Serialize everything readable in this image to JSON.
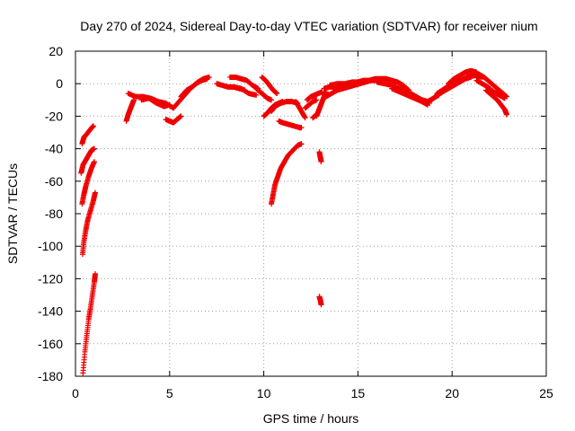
{
  "chart_data": {
    "type": "scatter",
    "title": "Day 270 of 2024, Sidereal Day-to-day VTEC variation (SDTVAR) for receiver nium",
    "xlabel": "GPS time / hours",
    "ylabel": "SDTVAR / TECUs",
    "xlim": [
      0,
      25
    ],
    "ylim": [
      -180,
      20
    ],
    "xticks": [
      0,
      5,
      10,
      15,
      20,
      25
    ],
    "yticks": [
      20,
      0,
      -20,
      -40,
      -60,
      -80,
      -100,
      -120,
      -140,
      -160,
      -180
    ],
    "grid": true,
    "marker": "+",
    "color": "#ee0000",
    "segments": [
      {
        "x": [
          0.35,
          0.45,
          0.6,
          0.8,
          0.95
        ],
        "y": [
          -37,
          -33,
          -31,
          -28,
          -26
        ]
      },
      {
        "x": [
          0.3,
          0.4,
          0.55,
          0.7,
          0.85,
          1.0
        ],
        "y": [
          -55,
          -50,
          -47,
          -44,
          -41,
          -40
        ]
      },
      {
        "x": [
          0.35,
          0.45,
          0.55,
          0.7,
          0.85,
          1.0
        ],
        "y": [
          -74,
          -68,
          -63,
          -57,
          -52,
          -48
        ]
      },
      {
        "x": [
          0.38,
          0.45,
          0.55,
          0.65,
          0.8,
          0.95,
          1.05
        ],
        "y": [
          -105,
          -97,
          -90,
          -84,
          -78,
          -72,
          -67
        ]
      },
      {
        "x": [
          0.4,
          0.5,
          0.6,
          0.7,
          0.8,
          0.9,
          1.0,
          1.05
        ],
        "y": [
          -178,
          -165,
          -155,
          -145,
          -138,
          -130,
          -122,
          -117
        ]
      },
      {
        "x": [
          2.7,
          2.8,
          2.9,
          3.0,
          3.1
        ],
        "y": [
          -23,
          -19,
          -16,
          -13,
          -10
        ]
      },
      {
        "x": [
          2.8,
          3.2,
          3.6,
          4.0,
          4.4,
          4.8,
          5.2
        ],
        "y": [
          -6,
          -8,
          -8,
          -9,
          -11,
          -12,
          -15
        ]
      },
      {
        "x": [
          3.5,
          3.9,
          4.3,
          4.7,
          5.0
        ],
        "y": [
          -10,
          -9,
          -12,
          -14,
          -13
        ]
      },
      {
        "x": [
          4.8,
          5.0,
          5.2,
          5.4,
          5.6
        ],
        "y": [
          -22,
          -23,
          -24,
          -22,
          -20
        ]
      },
      {
        "x": [
          5.2,
          5.5,
          5.8,
          6.1,
          6.4,
          6.7,
          7.0
        ],
        "y": [
          -15,
          -11,
          -7,
          -3,
          0,
          2,
          3
        ]
      },
      {
        "x": [
          5.6,
          5.9,
          6.2,
          6.5,
          6.8,
          7.1
        ],
        "y": [
          -8,
          -4,
          -2,
          1,
          3,
          4
        ]
      },
      {
        "x": [
          7.5,
          7.8,
          8.1,
          8.4,
          8.7,
          9.0
        ],
        "y": [
          0,
          -1,
          -2,
          -2,
          -3,
          -4
        ]
      },
      {
        "x": [
          8.2,
          8.5,
          8.8,
          9.1,
          9.4,
          9.7
        ],
        "y": [
          4,
          4,
          3,
          2,
          -1,
          -3
        ]
      },
      {
        "x": [
          8.4,
          8.8,
          9.2,
          9.6
        ],
        "y": [
          -2,
          -3,
          -6,
          -7
        ]
      },
      {
        "x": [
          9.9,
          10.1,
          10.3,
          10.5,
          10.7
        ],
        "y": [
          4,
          2,
          -1,
          -4,
          -6
        ]
      },
      {
        "x": [
          9.6,
          9.8,
          10.0,
          10.2,
          10.4
        ],
        "y": [
          -3,
          -5,
          -7,
          -9,
          -10
        ]
      },
      {
        "x": [
          10.0,
          10.2,
          10.4,
          10.6,
          10.8,
          11.0
        ],
        "y": [
          -20,
          -18,
          -15,
          -13,
          -12,
          -11
        ]
      },
      {
        "x": [
          10.4,
          10.6,
          10.9,
          11.2,
          11.5,
          11.8
        ],
        "y": [
          -17,
          -14,
          -12,
          -11,
          -11,
          -12
        ]
      },
      {
        "x": [
          10.8,
          11.0,
          11.3,
          11.6,
          11.9,
          12.0
        ],
        "y": [
          -23,
          -24,
          -25,
          -26,
          -27,
          -27
        ]
      },
      {
        "x": [
          11.7,
          11.8,
          12.0,
          12.2
        ],
        "y": [
          -11,
          -13,
          -17,
          -21
        ]
      },
      {
        "x": [
          10.4,
          10.5,
          10.6,
          10.75,
          10.9,
          11.1,
          11.3,
          11.55,
          11.8,
          12.0
        ],
        "y": [
          -74,
          -68,
          -62,
          -57,
          -52,
          -48,
          -44,
          -41,
          -38,
          -37
        ]
      },
      {
        "x": [
          12.3,
          12.5,
          12.7,
          12.9,
          13.1
        ],
        "y": [
          -10,
          -8,
          -7,
          -6,
          -5
        ]
      },
      {
        "x": [
          12.2,
          12.4,
          12.6,
          12.8
        ],
        "y": [
          -15,
          -13,
          -11,
          -10
        ]
      },
      {
        "x": [
          12.8,
          12.9,
          13.0,
          13.1,
          13.2,
          13.3
        ],
        "y": [
          -20,
          -17,
          -14,
          -11,
          -8,
          -5
        ]
      },
      {
        "x": [
          12.6,
          12.8
        ],
        "y": [
          -21,
          -19
        ]
      },
      {
        "x": [
          12.95,
          13.0,
          13.05
        ],
        "y": [
          -42,
          -45,
          -48
        ]
      },
      {
        "x": [
          12.95,
          13.0,
          13.05
        ],
        "y": [
          -131,
          -133,
          -136
        ]
      },
      {
        "x": [
          13.3,
          13.6,
          13.9,
          14.2,
          14.5,
          14.8,
          15.1,
          15.4,
          15.7,
          16.0,
          16.3
        ],
        "y": [
          -8,
          -6,
          -4,
          -3,
          -2,
          -1,
          0,
          1,
          2,
          2,
          2
        ]
      },
      {
        "x": [
          13.2,
          13.5,
          13.8,
          14.1,
          14.4,
          14.7,
          15.0,
          15.3,
          15.6,
          15.9,
          16.2,
          16.5,
          16.8,
          17.1,
          17.4,
          17.7
        ],
        "y": [
          -3,
          -2,
          -2,
          -1,
          -1,
          0,
          1,
          2,
          2,
          3,
          3,
          3,
          2,
          1,
          -1,
          -4
        ]
      },
      {
        "x": [
          13.5,
          13.9,
          14.3,
          14.7,
          15.1,
          15.5
        ],
        "y": [
          -1,
          0,
          0,
          1,
          1,
          2
        ]
      },
      {
        "x": [
          16.0,
          16.4,
          16.8,
          17.2,
          17.6,
          18.0,
          18.4,
          18.7
        ],
        "y": [
          1,
          0,
          -1,
          -3,
          -5,
          -8,
          -11,
          -13
        ]
      },
      {
        "x": [
          16.8,
          17.2,
          17.6,
          18.0,
          18.4,
          18.8
        ],
        "y": [
          -3,
          -5,
          -7,
          -9,
          -11,
          -12
        ]
      },
      {
        "x": [
          17.8,
          18.1,
          18.4,
          18.7,
          19.0,
          19.3
        ],
        "y": [
          -6,
          -8,
          -10,
          -11,
          -9,
          -7
        ]
      },
      {
        "x": [
          18.6,
          18.9,
          19.2,
          19.5,
          19.8,
          20.1,
          20.4,
          20.7,
          21.0
        ],
        "y": [
          -12,
          -10,
          -7,
          -5,
          -3,
          -1,
          1,
          3,
          4
        ]
      },
      {
        "x": [
          19.2,
          19.6,
          20.0,
          20.4,
          20.8,
          21.2,
          21.6
        ],
        "y": [
          -6,
          -3,
          0,
          2,
          4,
          5,
          4
        ]
      },
      {
        "x": [
          19.8,
          20.1,
          20.4,
          20.7,
          21.0,
          21.3
        ],
        "y": [
          0,
          3,
          5,
          7,
          8,
          7
        ]
      },
      {
        "x": [
          20.8,
          21.1,
          21.4,
          21.7,
          22.0,
          22.3,
          22.6,
          22.9
        ],
        "y": [
          6,
          7,
          6,
          4,
          1,
          -2,
          -5,
          -8
        ]
      },
      {
        "x": [
          21.3,
          21.6,
          21.9,
          22.2,
          22.5,
          22.8
        ],
        "y": [
          2,
          0,
          -2,
          -5,
          -7,
          -9
        ]
      },
      {
        "x": [
          21.8,
          22.1,
          22.4,
          22.6,
          22.8,
          22.9
        ],
        "y": [
          -4,
          -7,
          -10,
          -13,
          -16,
          -19
        ]
      }
    ]
  }
}
